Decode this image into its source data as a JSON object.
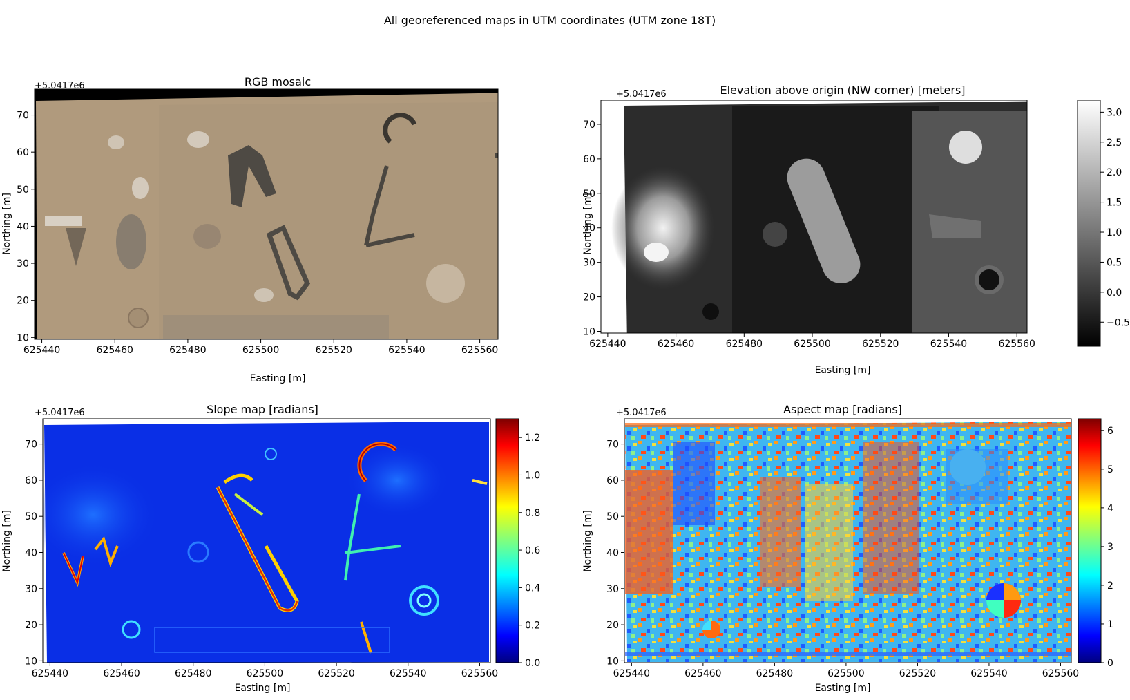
{
  "suptitle": "All georeferenced maps in UTM coordinates (UTM zone 18T)",
  "chart_data": [
    {
      "type": "heatmap",
      "title": "RGB mosaic",
      "xlabel": "Easting [m]",
      "ylabel": "Northing [m]",
      "offset_label": "+5.0417e6",
      "xlim": [
        625438,
        625565
      ],
      "ylim": [
        9.5,
        77
      ],
      "xticks": [
        625440,
        625460,
        625480,
        625500,
        625520,
        625540,
        625560
      ],
      "yticks": [
        10,
        20,
        30,
        40,
        50,
        60,
        70
      ],
      "colorbar": null
    },
    {
      "type": "heatmap",
      "title": "Elevation above origin (NW corner) [meters]",
      "xlabel": "Easting [m]",
      "ylabel": "Northing [m]",
      "offset_label": "+5.0417e6",
      "xlim": [
        625438,
        625563
      ],
      "ylim": [
        9.5,
        77
      ],
      "xticks": [
        625440,
        625460,
        625480,
        625500,
        625520,
        625540,
        625560
      ],
      "yticks": [
        10,
        20,
        30,
        40,
        50,
        60,
        70
      ],
      "colorbar": {
        "cmap": "gray",
        "range": [
          -0.9,
          3.2
        ],
        "ticks": [
          "3.0",
          "2.5",
          "2.0",
          "1.5",
          "1.0",
          "0.5",
          "0.0",
          "−0.5"
        ],
        "tick_values": [
          3.0,
          2.5,
          2.0,
          1.5,
          1.0,
          0.5,
          0.0,
          -0.5
        ]
      }
    },
    {
      "type": "heatmap",
      "title": "Slope map [radians]",
      "xlabel": "Easting [m]",
      "ylabel": "Northing [m]",
      "offset_label": "+5.0417e6",
      "xlim": [
        625438,
        625563
      ],
      "ylim": [
        9.5,
        77
      ],
      "xticks": [
        625440,
        625460,
        625480,
        625500,
        625520,
        625540,
        625560
      ],
      "yticks": [
        10,
        20,
        30,
        40,
        50,
        60,
        70
      ],
      "colorbar": {
        "cmap": "jet",
        "range": [
          0,
          1.3
        ],
        "ticks": [
          "1.2",
          "1.0",
          "0.8",
          "0.6",
          "0.4",
          "0.2",
          "0.0"
        ],
        "tick_values": [
          1.2,
          1.0,
          0.8,
          0.6,
          0.4,
          0.2,
          0.0
        ]
      }
    },
    {
      "type": "heatmap",
      "title": "Aspect map [radians]",
      "xlabel": "Easting [m]",
      "ylabel": "Northing [m]",
      "offset_label": "+5.0417e6",
      "xlim": [
        625438,
        625563
      ],
      "ylim": [
        9.5,
        77
      ],
      "xticks": [
        625440,
        625460,
        625480,
        625500,
        625520,
        625540,
        625560
      ],
      "yticks": [
        10,
        20,
        30,
        40,
        50,
        60,
        70
      ],
      "colorbar": {
        "cmap": "jet",
        "range": [
          0,
          6.3
        ],
        "ticks": [
          "6",
          "5",
          "4",
          "3",
          "2",
          "1",
          "0"
        ],
        "tick_values": [
          6,
          5,
          4,
          3,
          2,
          1,
          0
        ]
      }
    }
  ]
}
